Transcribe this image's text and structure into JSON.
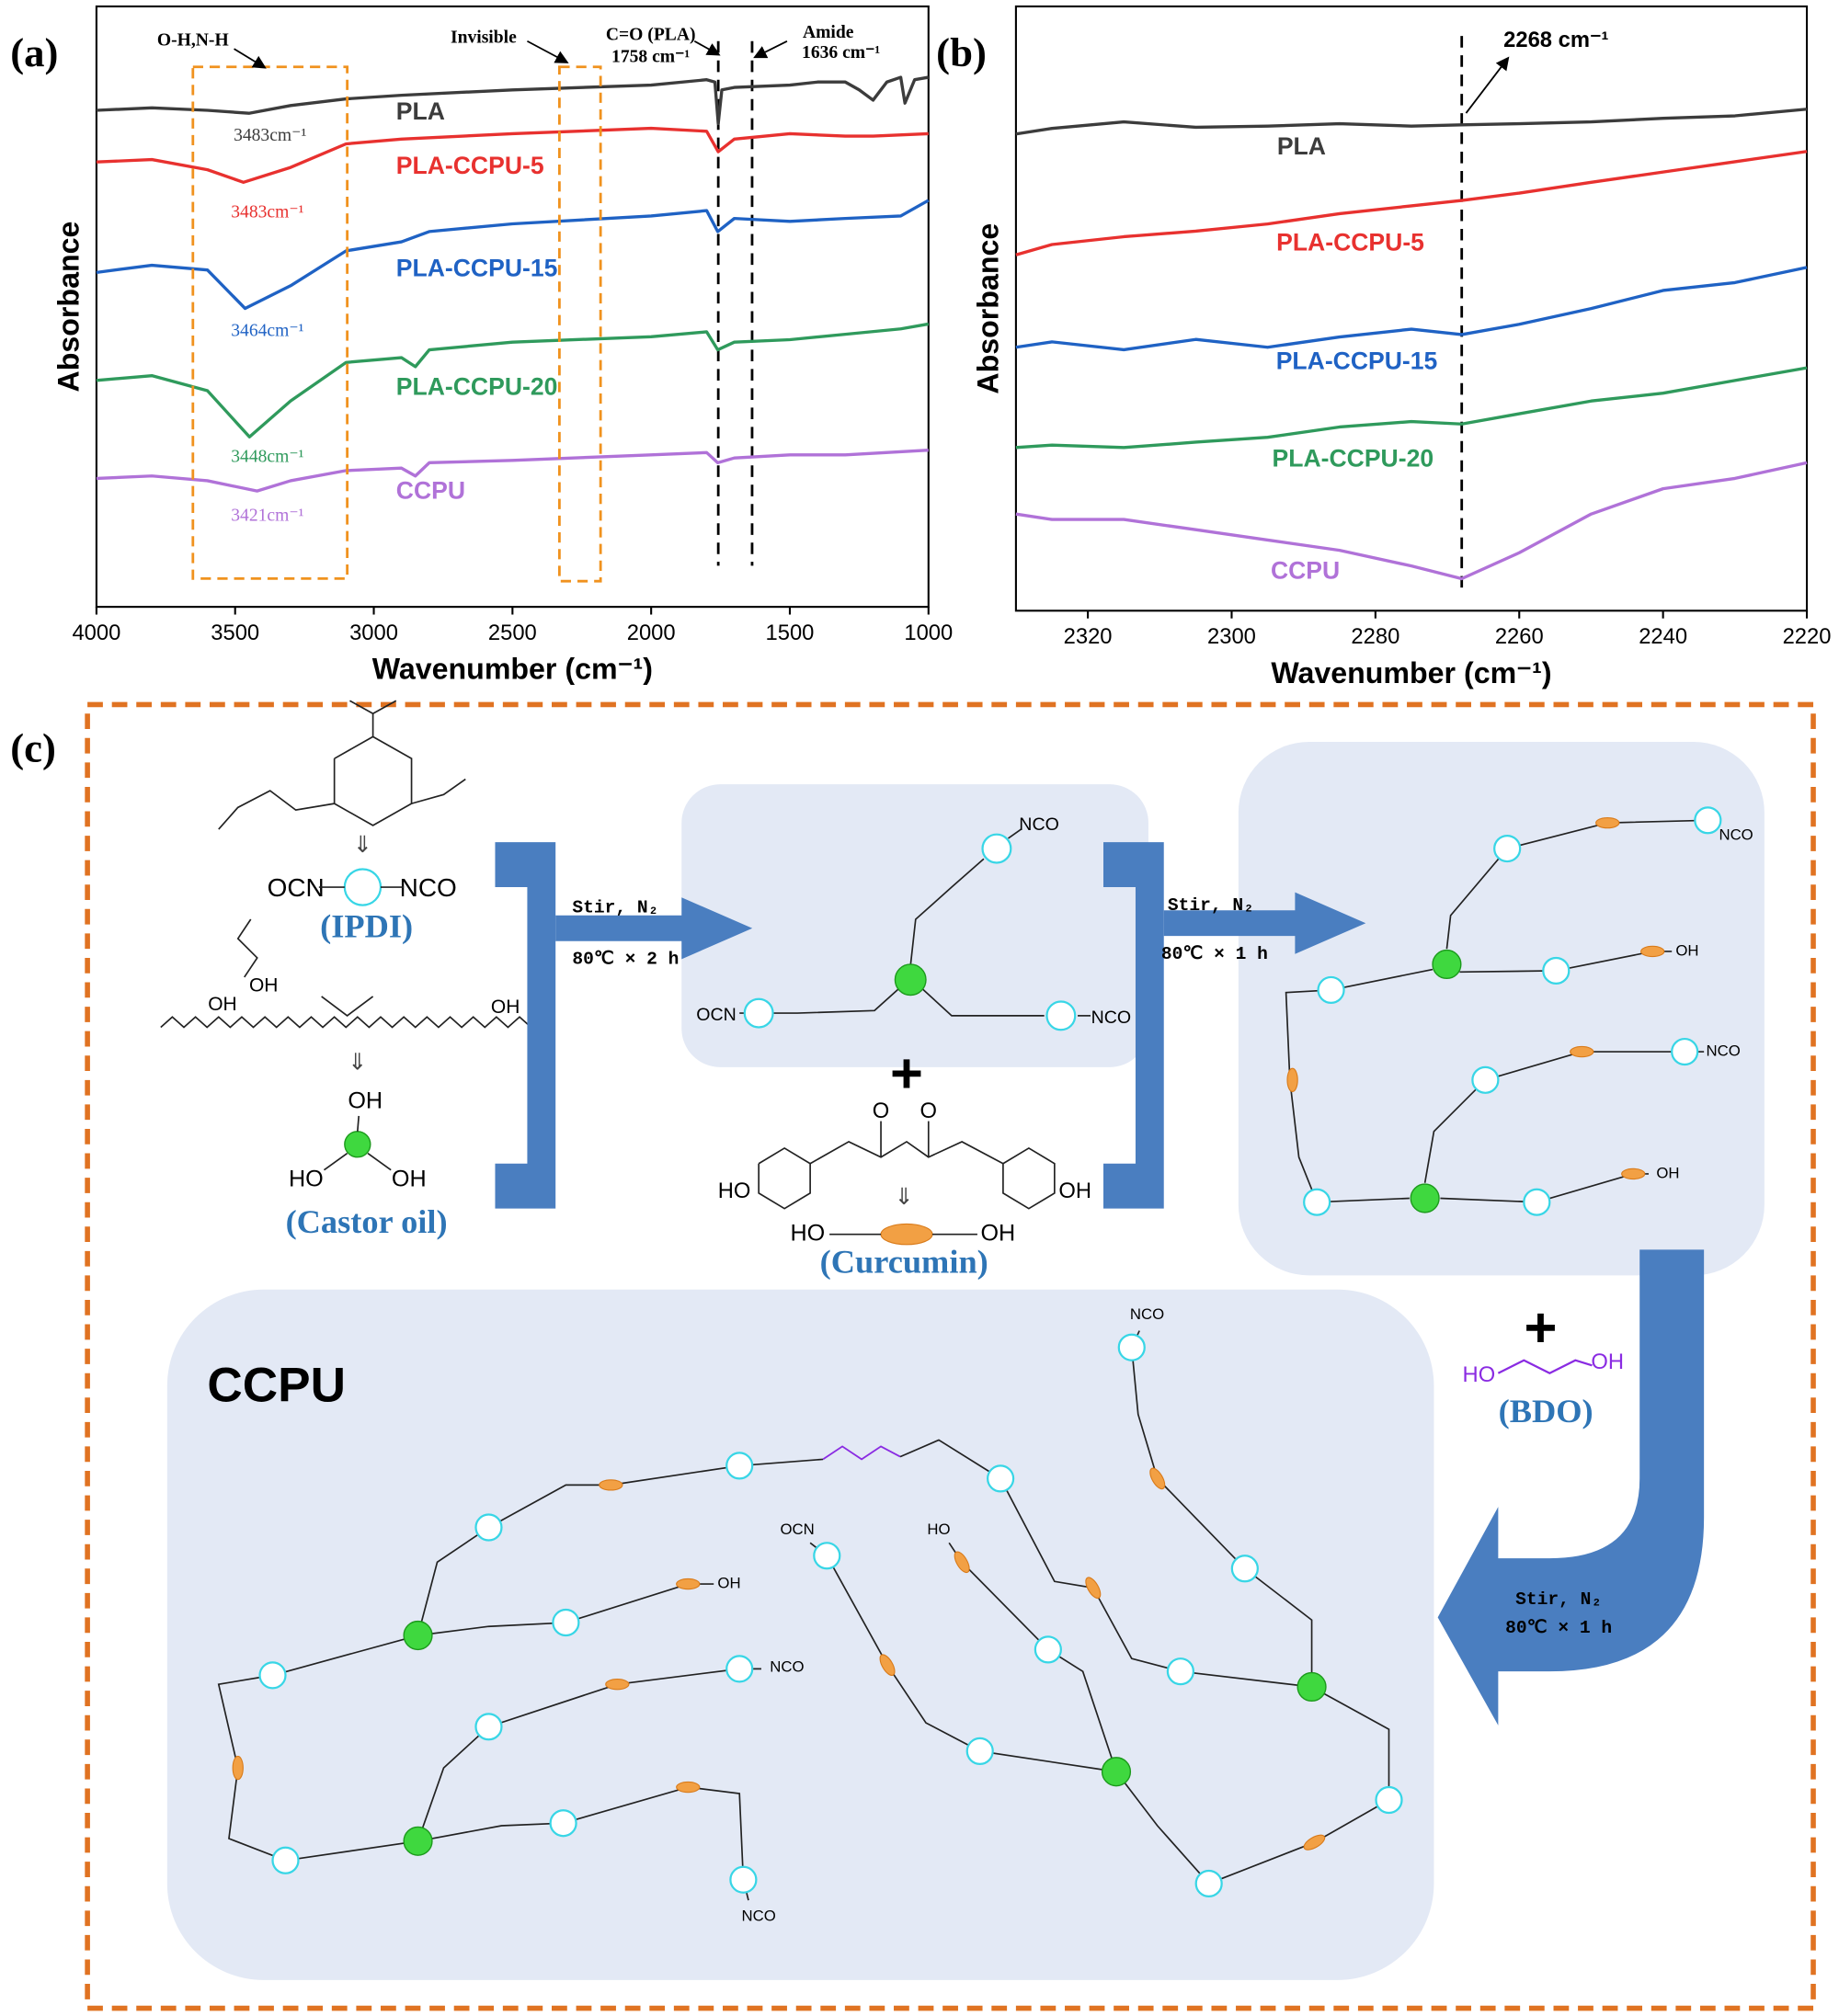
{
  "panel_labels": [
    "(a)",
    "(b)",
    "(c)"
  ],
  "chart_data": [
    {
      "type": "line",
      "x_label": "Wavenumber (cm⁻¹)",
      "y_label": "Absorbance",
      "xlim": [
        4000,
        1000
      ],
      "xticks": [
        4000,
        3500,
        3000,
        2500,
        2000,
        1500,
        1000
      ],
      "ylim": [
        0,
        100
      ],
      "series": [
        {
          "name": "PLA",
          "color": "#3c3c3c",
          "peak_label": "3483cm⁻¹",
          "x": [
            4000,
            3800,
            3600,
            3450,
            3300,
            3100,
            2900,
            2500,
            2000,
            1800,
            1770,
            1758,
            1745,
            1700,
            1500,
            1400,
            1300,
            1250,
            1200,
            1150,
            1100,
            1085,
            1050,
            1000
          ],
          "values": [
            82.7,
            83.1,
            82.7,
            82.2,
            83.5,
            84.6,
            85.2,
            86.1,
            86.9,
            87.8,
            87.4,
            80.5,
            86.1,
            86.5,
            86.9,
            87.4,
            87.4,
            86.1,
            84.4,
            87.4,
            88.2,
            83.9,
            87.8,
            88.2
          ]
        },
        {
          "name": "PLA-CCPU-5",
          "color": "#e8312f",
          "peak_label": "3483cm⁻¹",
          "x": [
            4000,
            3800,
            3600,
            3470,
            3300,
            3100,
            2900,
            2500,
            2000,
            1800,
            1758,
            1700,
            1500,
            1300,
            1200,
            1000
          ],
          "values": [
            74.1,
            74.5,
            72.8,
            70.7,
            73.2,
            77.1,
            77.9,
            78.8,
            79.7,
            79.2,
            75.8,
            77.9,
            78.8,
            78.4,
            78.4,
            78.8
          ]
        },
        {
          "name": "PLA-CCPU-15",
          "color": "#1f62c4",
          "peak_label": "3464cm⁻¹",
          "x": [
            4000,
            3800,
            3600,
            3464,
            3300,
            3100,
            2900,
            2800,
            2500,
            2000,
            1800,
            1760,
            1700,
            1500,
            1300,
            1100,
            1000
          ],
          "values": [
            55.7,
            56.9,
            56.1,
            49.7,
            53.5,
            59.3,
            60.8,
            62.5,
            63.8,
            65.1,
            66.0,
            62.5,
            64.7,
            64.2,
            64.7,
            65.1,
            67.7
          ]
        },
        {
          "name": "PLA-CCPU-20",
          "color": "#2f9a5c",
          "peak_label": "3448cm⁻¹",
          "x": [
            4000,
            3800,
            3600,
            3448,
            3300,
            3100,
            2900,
            2850,
            2800,
            2500,
            2000,
            1800,
            1760,
            1700,
            1500,
            1300,
            1100,
            1000
          ],
          "values": [
            37.7,
            38.5,
            36.0,
            28.3,
            34.3,
            40.7,
            41.5,
            40.0,
            42.8,
            44.1,
            45.0,
            45.8,
            42.8,
            44.1,
            44.5,
            45.4,
            46.3,
            47.1
          ]
        },
        {
          "name": "CCPU",
          "color": "#b072d8",
          "peak_label": "3421cm⁻¹",
          "x": [
            4000,
            3800,
            3600,
            3421,
            3300,
            3100,
            2900,
            2850,
            2800,
            2500,
            2000,
            1800,
            1760,
            1700,
            1500,
            1300,
            1000
          ],
          "values": [
            21.4,
            21.8,
            21.0,
            19.3,
            21.0,
            22.7,
            23.1,
            21.8,
            24.0,
            24.4,
            25.3,
            25.7,
            24.0,
            24.8,
            25.3,
            25.3,
            26.1
          ]
        }
      ],
      "annotations": [
        "O-H,N-H",
        "Invisible",
        "C=O (PLA)",
        "1758 cm⁻¹",
        "Amide",
        "1636 cm⁻¹"
      ],
      "marker_lines": [
        1758,
        1636
      ]
    },
    {
      "type": "line",
      "x_label": "Wavenumber (cm⁻¹)",
      "y_label": "Absorbance",
      "xlim": [
        2330,
        2220
      ],
      "xticks": [
        2320,
        2300,
        2280,
        2260,
        2240,
        2220
      ],
      "ylim": [
        0,
        100
      ],
      "series": [
        {
          "name": "PLA",
          "color": "#3c3c3c",
          "x": [
            2330,
            2325,
            2315,
            2305,
            2295,
            2285,
            2275,
            2268,
            2260,
            2250,
            2240,
            2230,
            2220
          ],
          "values": [
            78.9,
            79.8,
            80.9,
            80.0,
            80.2,
            80.6,
            80.2,
            80.4,
            80.6,
            80.9,
            81.5,
            81.9,
            83.0
          ]
        },
        {
          "name": "PLA-CCPU-5",
          "color": "#e8312f",
          "x": [
            2330,
            2325,
            2315,
            2305,
            2295,
            2285,
            2275,
            2268,
            2260,
            2250,
            2240,
            2230,
            2220
          ],
          "values": [
            58.9,
            60.6,
            61.9,
            62.8,
            64.0,
            65.7,
            67.0,
            67.9,
            69.1,
            70.9,
            72.6,
            74.3,
            76.0
          ]
        },
        {
          "name": "PLA-CCPU-15",
          "color": "#1f62c4",
          "x": [
            2330,
            2325,
            2315,
            2305,
            2295,
            2285,
            2275,
            2268,
            2260,
            2250,
            2240,
            2230,
            2220
          ],
          "values": [
            43.6,
            44.5,
            43.2,
            44.9,
            43.6,
            45.3,
            46.6,
            45.7,
            47.4,
            50.0,
            53.0,
            54.3,
            56.8
          ]
        },
        {
          "name": "PLA-CCPU-20",
          "color": "#2f9a5c",
          "x": [
            2330,
            2325,
            2315,
            2305,
            2295,
            2285,
            2275,
            2268,
            2260,
            2250,
            2240,
            2230,
            2220
          ],
          "values": [
            27.0,
            27.4,
            27.0,
            27.9,
            28.7,
            30.4,
            31.3,
            30.9,
            32.6,
            34.7,
            36.0,
            38.1,
            40.2
          ]
        },
        {
          "name": "CCPU",
          "color": "#b072d8",
          "x": [
            2330,
            2325,
            2315,
            2305,
            2295,
            2285,
            2275,
            2268,
            2260,
            2250,
            2240,
            2230,
            2220
          ],
          "values": [
            16.0,
            15.1,
            15.1,
            13.4,
            11.7,
            10.0,
            7.4,
            5.3,
            9.6,
            16.0,
            20.2,
            21.9,
            24.5
          ]
        }
      ],
      "annotations": [
        "2268 cm⁻¹"
      ],
      "marker_lines": [
        2268
      ]
    }
  ],
  "scheme": {
    "ipdi": {
      "left": "OCN",
      "right": "NCO",
      "name": "(IPDI)"
    },
    "castor_oil": {
      "structure_groups": [
        "OH",
        "OH",
        "OH"
      ],
      "top": "OH",
      "left": "HO",
      "right": "OH",
      "name": "(Castor oil)"
    },
    "step_1": {
      "line_1": "Stir, N₂",
      "line_2": "80℃ × 2 h"
    },
    "plus": "+",
    "intermediate_1": {
      "ends": [
        "OCN",
        "NCO",
        "NCO"
      ]
    },
    "curcumin": {
      "structure_groups": [
        "HO",
        "OH"
      ],
      "left": "HO",
      "right": "OH",
      "name": "(Curcumin)"
    },
    "step_2": {
      "line_1": "Stir, N₂",
      "line_2": "80℃ × 1 h"
    },
    "intermediate_2": {
      "ends": [
        "NCO",
        "OH",
        "NCO",
        "OH"
      ]
    },
    "bdo": {
      "left": "HO",
      "right": "OH",
      "name": "(BDO)"
    },
    "step_3": {
      "line_1": "Stir, N₂",
      "line_2": "80℃ × 1 h"
    },
    "product": {
      "name": "CCPU",
      "ends": [
        "OH",
        "NCO",
        "NCO",
        "OCN",
        "HO",
        "NCO"
      ]
    }
  }
}
